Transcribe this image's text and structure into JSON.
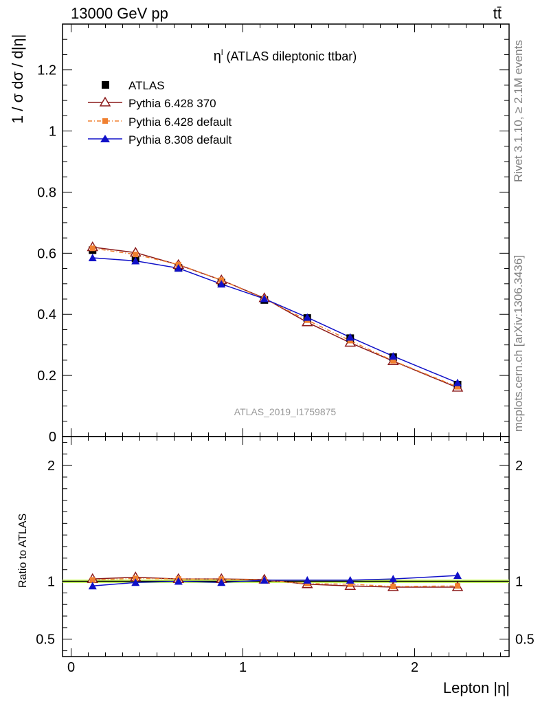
{
  "header": {
    "energy_label": "13000 GeV pp",
    "process_label": "tt̄"
  },
  "side_labels": {
    "rivet": "Rivet 3.1.10, ≥ 2.1M events",
    "mcplots": "mcplots.cern.ch [arXiv:1306.3436]"
  },
  "watermark": "ATLAS_2019_I1759875",
  "chart_data": [
    {
      "type": "scatter",
      "panel": "main",
      "title": "η",
      "title_superscript": "l",
      "title_suffix": " (ATLAS dileptonic ttbar)",
      "ylabel": "1 / σ  dσ / d|η|",
      "xlim": [
        -0.05,
        2.55
      ],
      "ylim": [
        0,
        1.35
      ],
      "yticks": [
        0,
        0.2,
        0.4,
        0.6,
        0.8,
        1,
        1.2
      ],
      "ytick_labels": [
        "0",
        "0.2",
        "0.4",
        "0.6",
        "0.8",
        "1",
        "1.2"
      ],
      "grid": false,
      "legend_position": "top-left",
      "x": [
        0.125,
        0.375,
        0.625,
        0.875,
        1.125,
        1.375,
        1.625,
        1.875,
        2.25
      ],
      "series": [
        {
          "name": "ATLAS",
          "color": "#000000",
          "marker": "square",
          "line": "none",
          "values": [
            0.61,
            0.583,
            0.552,
            0.504,
            0.447,
            0.388,
            0.322,
            0.26,
            0.17
          ]
        },
        {
          "name": "Pythia 6.428 370",
          "color": "#8b1a1a",
          "marker": "open-triangle",
          "line": "solid",
          "values": [
            0.62,
            0.602,
            0.562,
            0.512,
            0.453,
            0.374,
            0.307,
            0.247,
            0.16
          ]
        },
        {
          "name": "Pythia 6.428 default",
          "color": "#f08030",
          "marker": "small-square",
          "line": "dashdot",
          "values": [
            0.616,
            0.596,
            0.563,
            0.512,
            0.451,
            0.381,
            0.314,
            0.248,
            0.163
          ]
        },
        {
          "name": "Pythia 8.308 default",
          "color": "#1010c8",
          "marker": "triangle",
          "line": "solid",
          "values": [
            0.585,
            0.575,
            0.551,
            0.499,
            0.451,
            0.39,
            0.325,
            0.263,
            0.176
          ]
        }
      ]
    },
    {
      "type": "scatter",
      "panel": "ratio",
      "ylabel": "Ratio to ATLAS",
      "xlabel": "Lepton |η|",
      "xlim": [
        -0.05,
        2.55
      ],
      "ylim": [
        0.35,
        2.25
      ],
      "yticks": [
        0.5,
        1,
        2
      ],
      "ytick_labels": [
        "0.5",
        "1",
        "2"
      ],
      "xticks": [
        0,
        1,
        2
      ],
      "xtick_labels": [
        "0",
        "1",
        "2"
      ],
      "reference_band": {
        "low": 0.985,
        "high": 1.015,
        "color": "#ccff66"
      },
      "x": [
        0.125,
        0.375,
        0.625,
        0.875,
        1.125,
        1.375,
        1.625,
        1.875,
        2.25
      ],
      "series": [
        {
          "name": "Pythia 6.428 370",
          "color": "#8b1a1a",
          "marker": "open-triangle",
          "line": "solid",
          "values": [
            1.02,
            1.035,
            1.02,
            1.02,
            1.015,
            0.975,
            0.96,
            0.95,
            0.95
          ]
        },
        {
          "name": "Pythia 6.428 default",
          "color": "#f08030",
          "marker": "small-square",
          "line": "dashdot",
          "values": [
            1.012,
            1.025,
            1.02,
            1.018,
            1.01,
            0.98,
            0.975,
            0.955,
            0.96
          ]
        },
        {
          "name": "Pythia 8.308 default",
          "color": "#1010c8",
          "marker": "triangle",
          "line": "solid",
          "values": [
            0.96,
            0.99,
            1.0,
            0.99,
            1.01,
            1.01,
            1.01,
            1.02,
            1.05
          ]
        }
      ]
    }
  ]
}
